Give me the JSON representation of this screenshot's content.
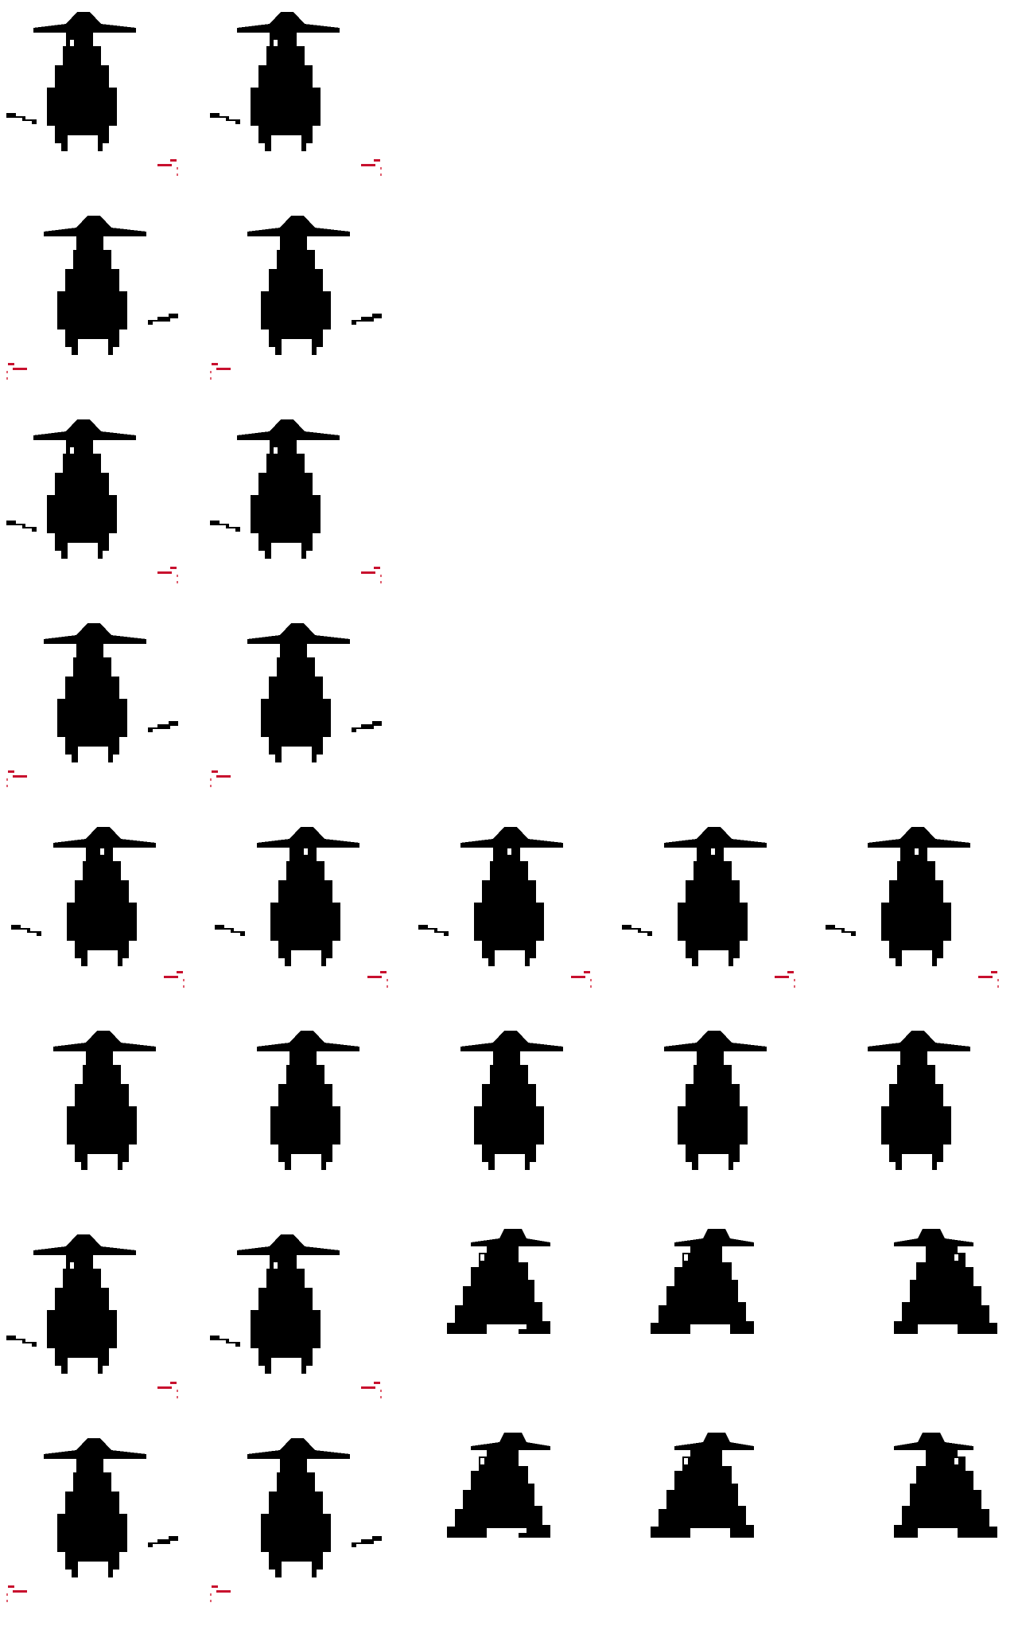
{
  "sprite_sheet": {
    "background": "#ffffff",
    "colors": {
      "silhouette": "#000000",
      "eye": "#ffffff",
      "accent": "#c8102e",
      "accent_dot": "#e06070"
    },
    "rows": [
      {
        "row": 0,
        "frames": [
          "idle-sword-back-right",
          "idle-sword-back-right"
        ]
      },
      {
        "row": 1,
        "frames": [
          "idle-sword-front-left",
          "idle-sword-front-left"
        ]
      },
      {
        "row": 2,
        "frames": [
          "idle-sword-back-right",
          "idle-sword-back-right"
        ]
      },
      {
        "row": 3,
        "frames": [
          "idle-sword-front-left",
          "idle-sword-front-left"
        ]
      },
      {
        "row": 4,
        "frames": [
          "front-sword",
          "front-sword",
          "front-sword",
          "front-sword",
          "front-sword"
        ]
      },
      {
        "row": 5,
        "frames": [
          "back-plain",
          "back-plain",
          "back-plain",
          "back-plain",
          "back-plain"
        ]
      },
      {
        "row": 6,
        "frames": [
          "idle-sword-back-right",
          "idle-sword-back-right",
          "side-walk-right",
          "side-walk-right-arm",
          "side-walk-left"
        ]
      },
      {
        "row": 7,
        "frames": [
          "idle-sword-front-left",
          "idle-sword-front-left",
          "side-walk-right",
          "side-walk-right-arm",
          "side-walk-left"
        ]
      }
    ]
  }
}
